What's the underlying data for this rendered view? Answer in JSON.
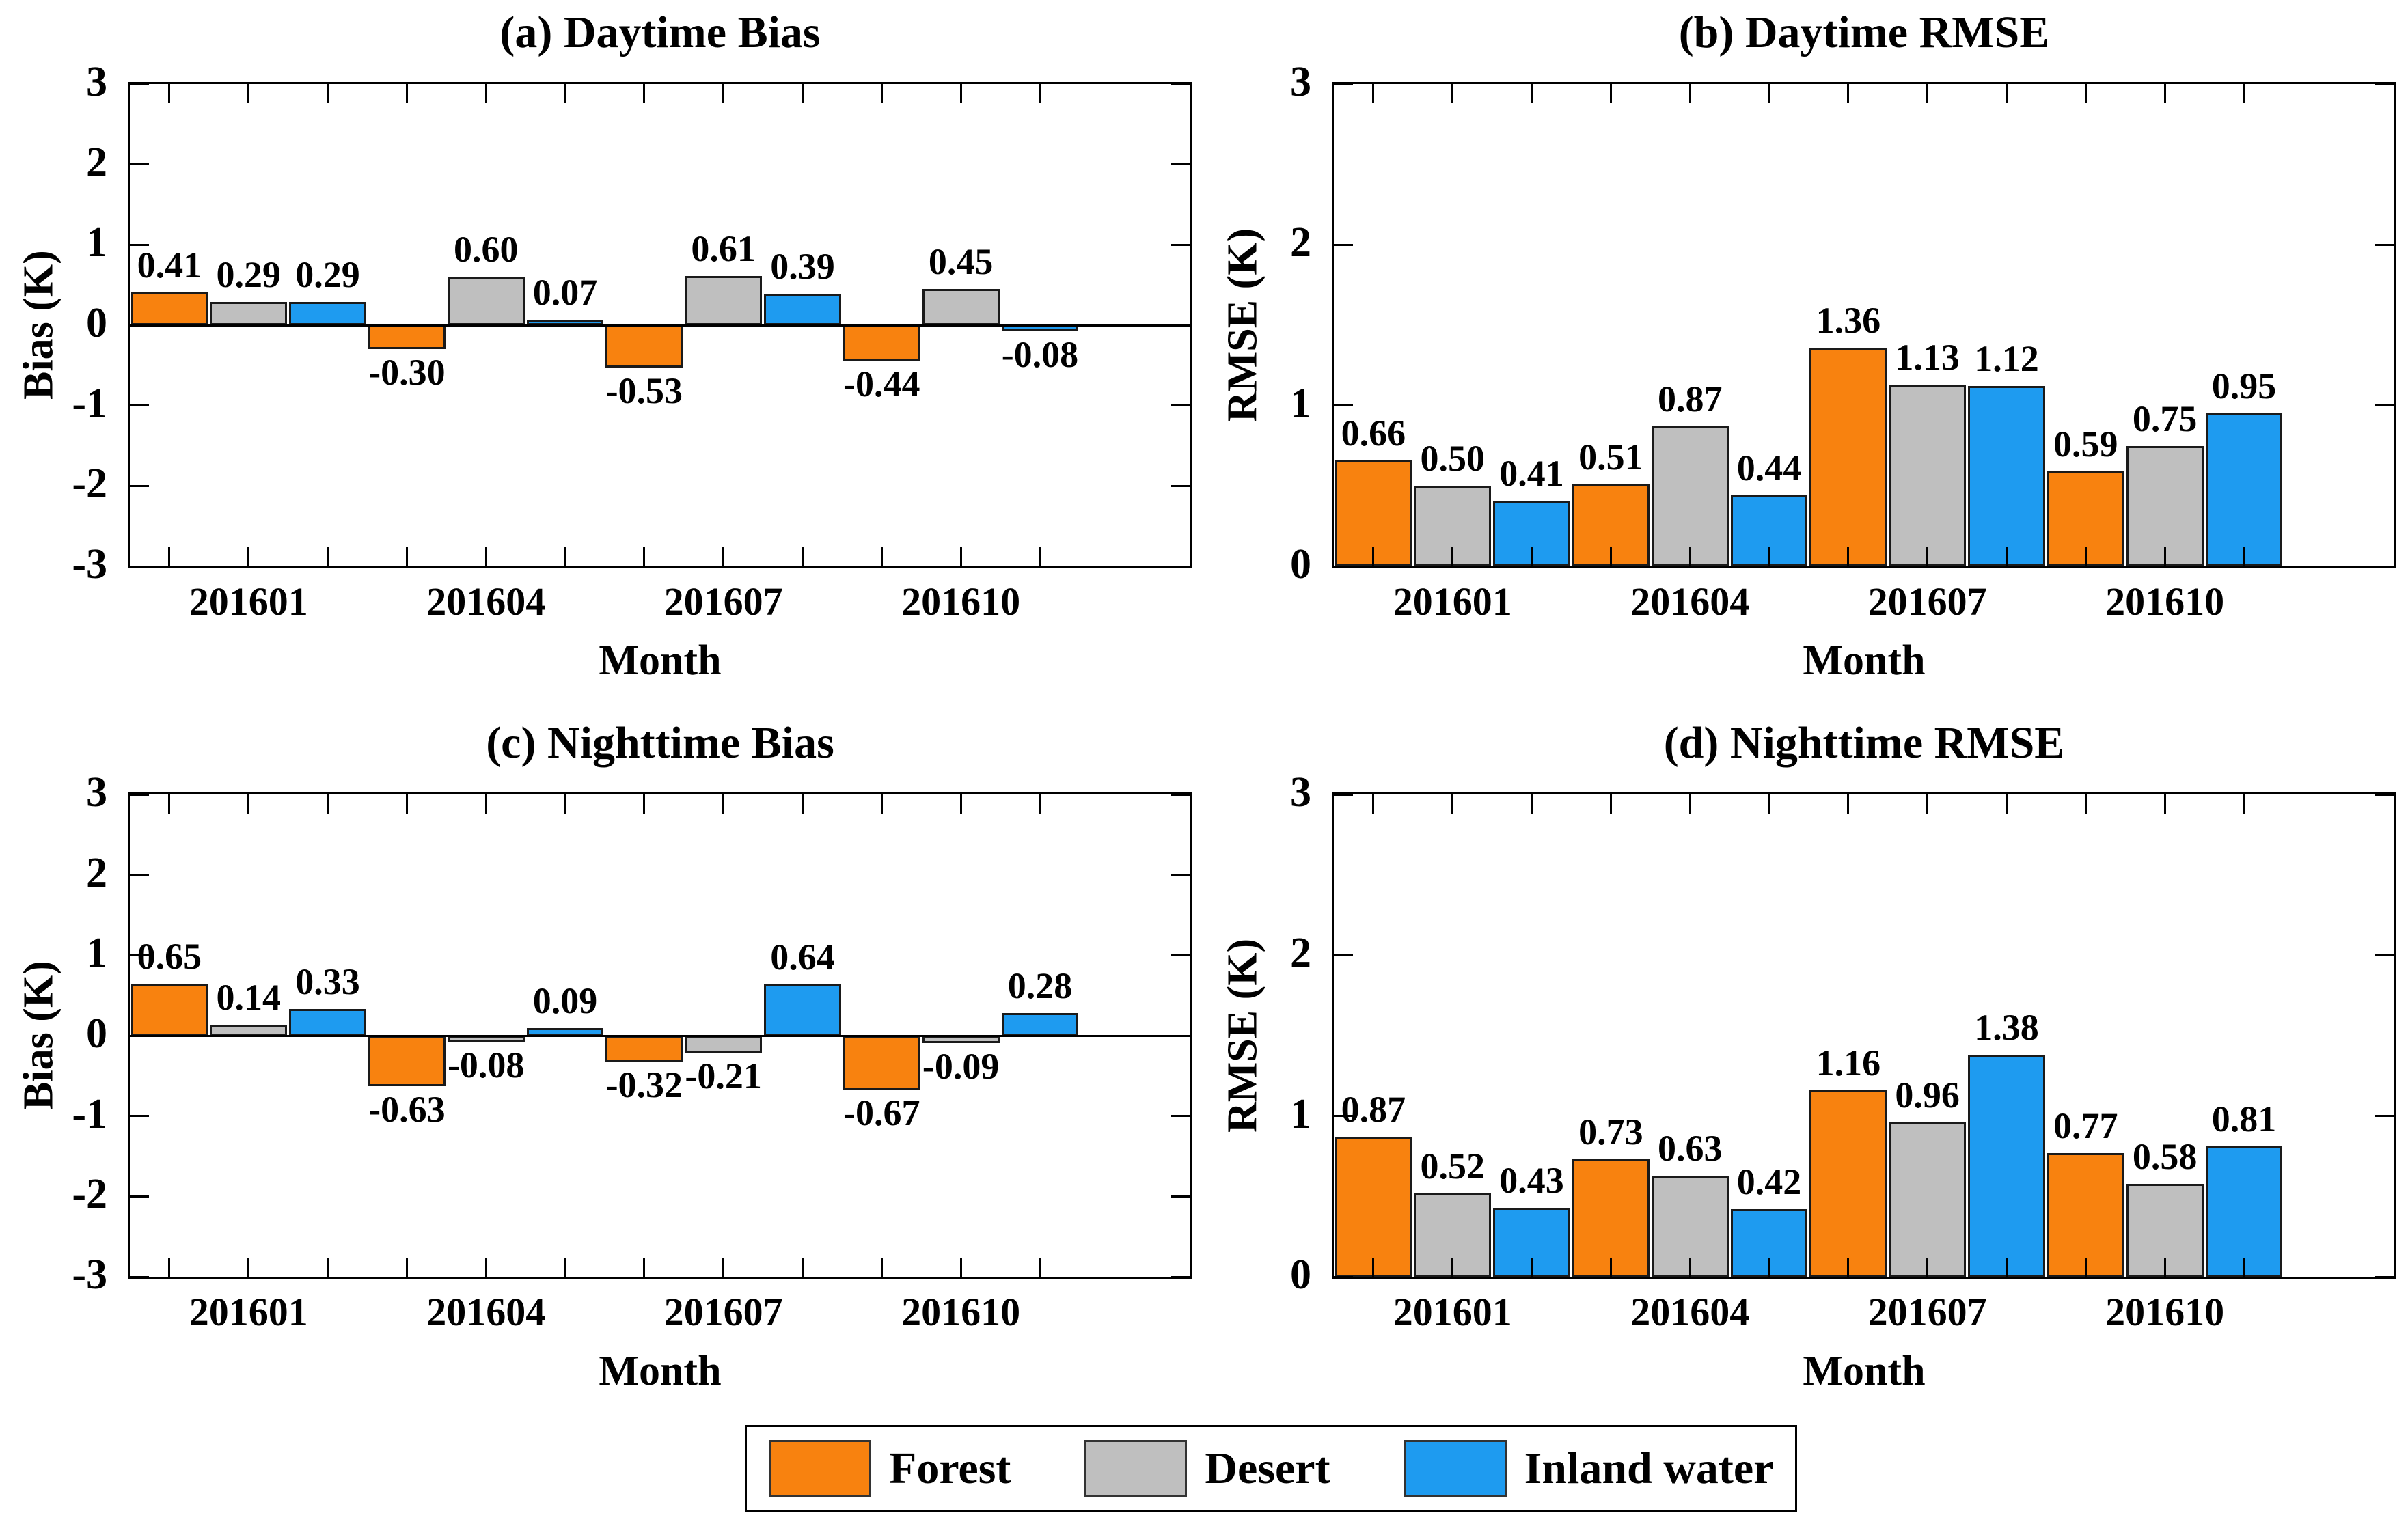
{
  "figure": {
    "background": "#ffffff"
  },
  "legend": {
    "entries": [
      {
        "label": "Forest",
        "color": "#F8820F"
      },
      {
        "label": "Desert",
        "color": "#BFBFBF"
      },
      {
        "label": "Inland water",
        "color": "#1E9BF0"
      }
    ]
  },
  "chart_data": [
    {
      "id": "daytime-bias",
      "type": "bar",
      "title": "(a) Daytime Bias",
      "xlabel": "Month",
      "ylabel": "Bias (K)",
      "ylim": [
        -3,
        3
      ],
      "yticks": [
        3,
        2,
        1,
        0,
        -1,
        -2,
        -3
      ],
      "grid": false,
      "value_labels": true,
      "categories": [
        "201601",
        "201604",
        "201607",
        "201610"
      ],
      "series": [
        {
          "name": "Forest",
          "values": [
            0.41,
            -0.3,
            -0.53,
            -0.44
          ]
        },
        {
          "name": "Desert",
          "values": [
            0.29,
            0.6,
            0.61,
            0.45
          ]
        },
        {
          "name": "Inland water",
          "values": [
            0.29,
            0.07,
            0.39,
            -0.08
          ]
        }
      ]
    },
    {
      "id": "daytime-rmse",
      "type": "bar",
      "title": "(b) Daytime RMSE",
      "xlabel": "Month",
      "ylabel": "RMSE (K)",
      "ylim": [
        0,
        3
      ],
      "yticks": [
        3,
        2,
        1,
        0
      ],
      "grid": false,
      "value_labels": true,
      "categories": [
        "201601",
        "201604",
        "201607",
        "201610"
      ],
      "series": [
        {
          "name": "Forest",
          "values": [
            0.66,
            0.51,
            1.36,
            0.59
          ]
        },
        {
          "name": "Desert",
          "values": [
            0.5,
            0.87,
            1.13,
            0.75
          ]
        },
        {
          "name": "Inland water",
          "values": [
            0.41,
            0.44,
            1.12,
            0.95
          ]
        }
      ]
    },
    {
      "id": "nighttime-bias",
      "type": "bar",
      "title": "(c) Nighttime Bias",
      "xlabel": "Month",
      "ylabel": "Bias (K)",
      "ylim": [
        -3,
        3
      ],
      "yticks": [
        3,
        2,
        1,
        0,
        -1,
        -2,
        -3
      ],
      "grid": false,
      "value_labels": true,
      "categories": [
        "201601",
        "201604",
        "201607",
        "201610"
      ],
      "series": [
        {
          "name": "Forest",
          "values": [
            0.65,
            -0.63,
            -0.32,
            -0.67
          ]
        },
        {
          "name": "Desert",
          "values": [
            0.14,
            -0.08,
            -0.21,
            -0.09
          ]
        },
        {
          "name": "Inland water",
          "values": [
            0.33,
            0.09,
            0.64,
            0.28
          ]
        }
      ]
    },
    {
      "id": "nighttime-rmse",
      "type": "bar",
      "title": "(d) Nighttime RMSE",
      "xlabel": "Month",
      "ylabel": "RMSE (K)",
      "ylim": [
        0,
        3
      ],
      "yticks": [
        3,
        2,
        1,
        0
      ],
      "grid": false,
      "value_labels": true,
      "categories": [
        "201601",
        "201604",
        "201607",
        "201610"
      ],
      "series": [
        {
          "name": "Forest",
          "values": [
            0.87,
            0.73,
            1.16,
            0.77
          ]
        },
        {
          "name": "Desert",
          "values": [
            0.52,
            0.63,
            0.96,
            0.58
          ]
        },
        {
          "name": "Inland water",
          "values": [
            0.43,
            0.42,
            1.38,
            0.81
          ]
        }
      ]
    }
  ]
}
